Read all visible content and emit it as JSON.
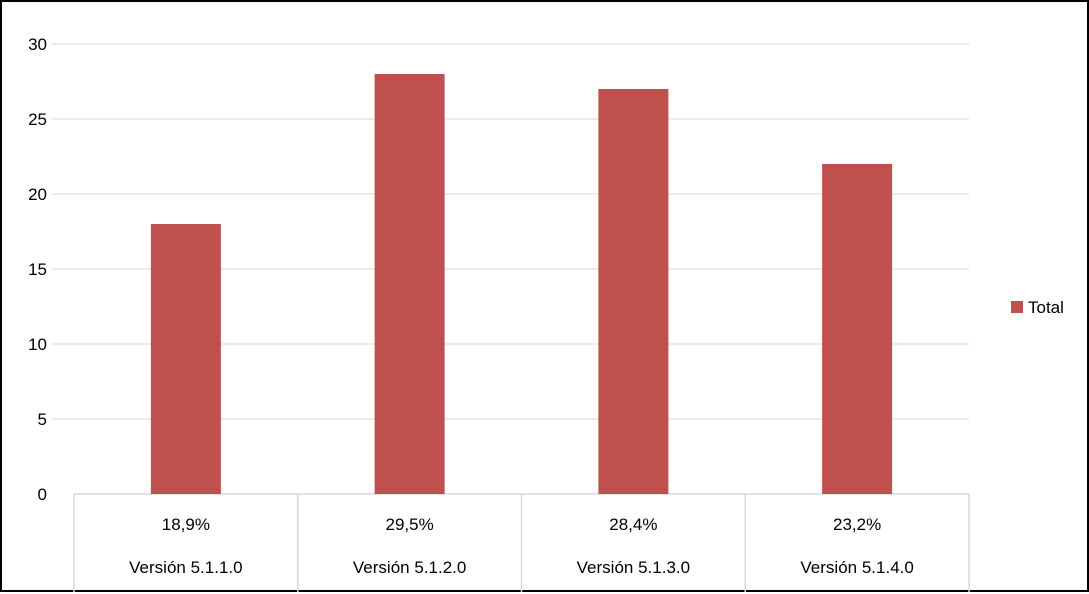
{
  "chart_data": {
    "type": "bar",
    "title": "",
    "xlabel": "",
    "ylabel": "",
    "ylim": [
      0,
      30
    ],
    "yticks": [
      0,
      5,
      10,
      15,
      20,
      25,
      30
    ],
    "categories": [
      "Versión 5.1.1.0",
      "Versión 5.1.2.0",
      "Versión 5.1.3.0",
      "Versión 5.1.4.0"
    ],
    "percent_labels": [
      "18,9%",
      "29,5%",
      "28,4%",
      "23,2%"
    ],
    "series": [
      {
        "name": "Total",
        "values": [
          18,
          28,
          27,
          22
        ],
        "color": "#c0504d"
      }
    ],
    "grid": true,
    "legend_position": "right",
    "gridline_color": "#d9d9d9",
    "table_line_color": "#d9d9d9"
  }
}
